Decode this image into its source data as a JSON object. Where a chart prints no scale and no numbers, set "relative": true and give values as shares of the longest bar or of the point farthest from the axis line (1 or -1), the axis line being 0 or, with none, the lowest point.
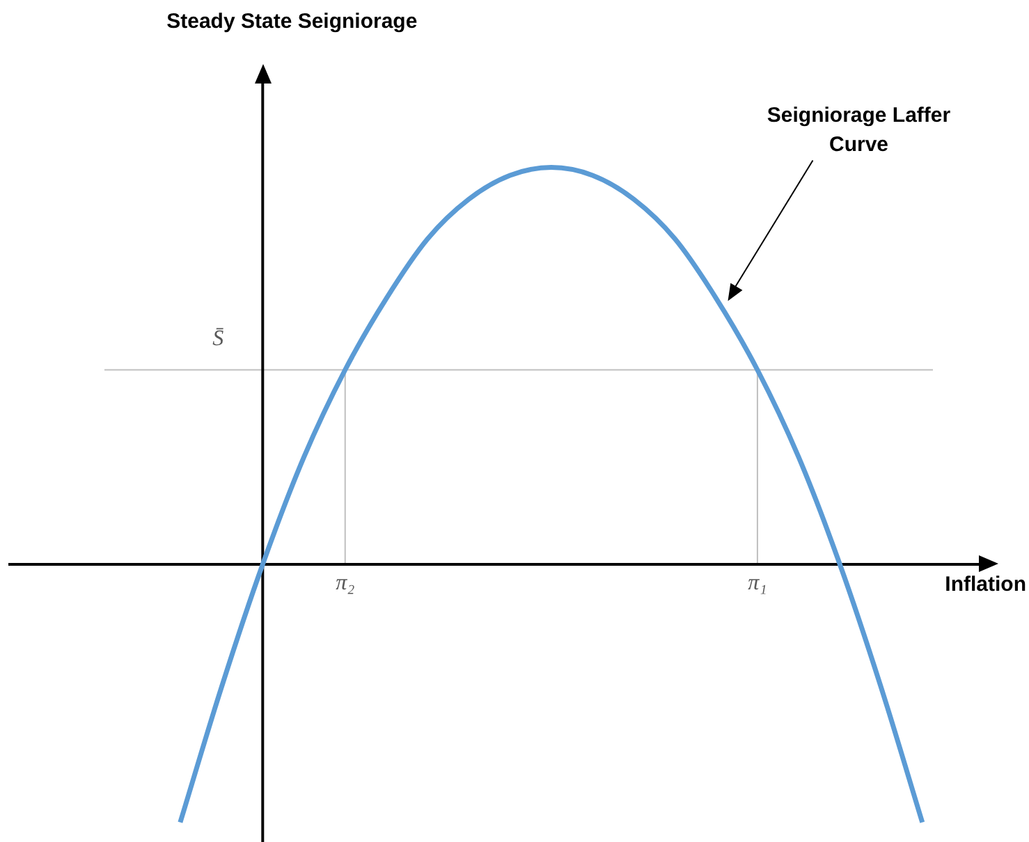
{
  "chart_data": {
    "type": "line",
    "xlabel": "Inflation",
    "annotations": [
      "Steady State Seigniorage"
    ],
    "relative": true,
    "categories": [
      null,
      null,
      null,
      null,
      null,
      null,
      null,
      null,
      "π₂",
      null,
      null,
      null,
      null,
      null,
      null,
      null,
      null,
      null,
      "π₁",
      null,
      null,
      null,
      null,
      null
    ],
    "series": [
      {
        "name": "Seigniorage Laffer Curve",
        "color": "#5b9bd5",
        "values": [
          null,
          null,
          null,
          null,
          -0.65,
          -0.31,
          0,
          0.27,
          0.49,
          0.67,
          0.82,
          0.92,
          0.98,
          1,
          0.98,
          0.92,
          0.82,
          0.67,
          0.49,
          0.27,
          0,
          -0.31,
          -0.65,
          null
        ]
      }
    ],
    "ref_lines": [
      {
        "axis": "y",
        "value": 0.49,
        "label": "S̄",
        "color": "#bfbfbf"
      },
      {
        "axis": "x",
        "value": "π₂",
        "color": "#bfbfbf"
      },
      {
        "axis": "x",
        "value": "π₁",
        "color": "#bfbfbf"
      }
    ]
  }
}
